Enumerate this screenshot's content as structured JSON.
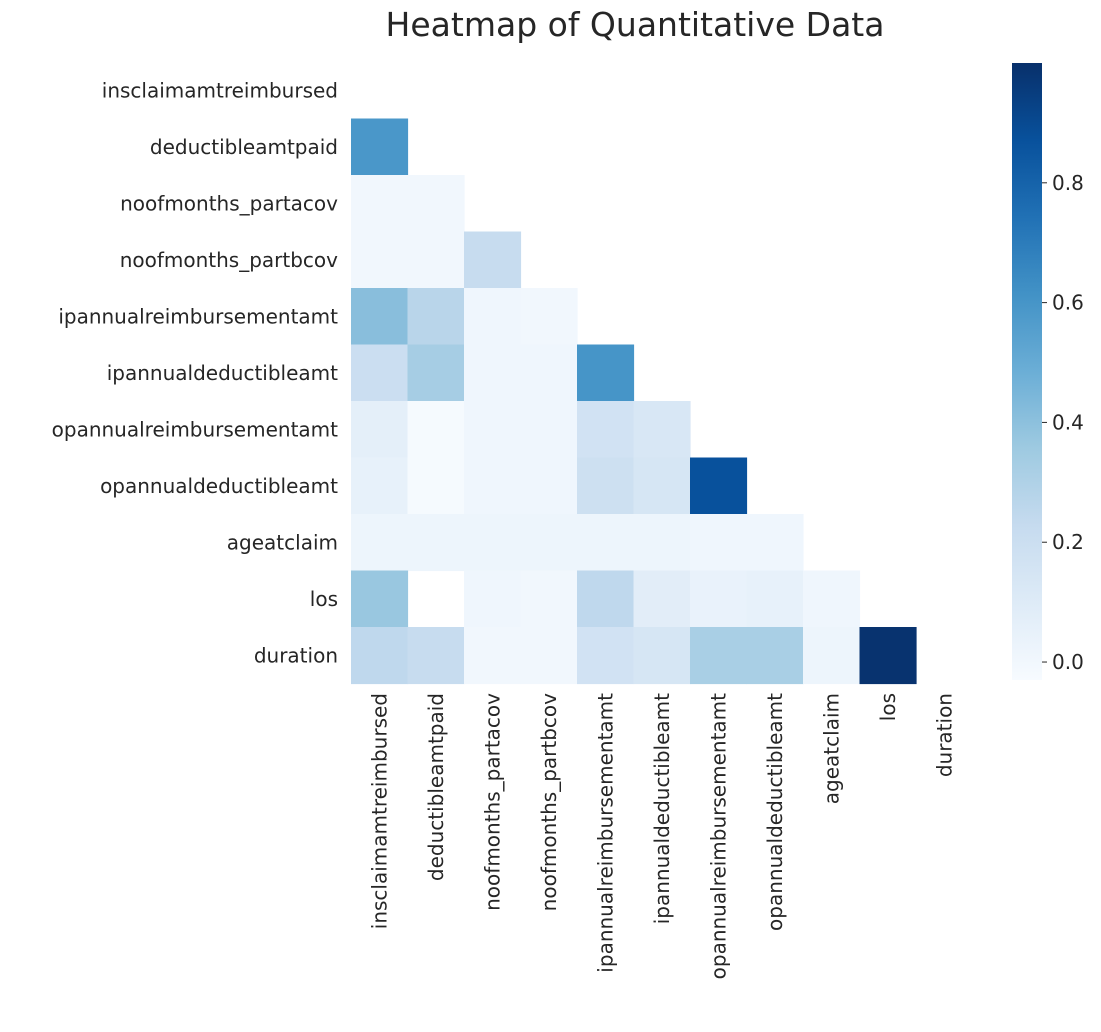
{
  "chart_data": {
    "type": "heatmap",
    "title": "Heatmap of Quantitative Data",
    "variables": [
      "insclaimamtreimbursed",
      "deductibleamtpaid",
      "noofmonths_partacov",
      "noofmonths_partbcov",
      "ipannualreimbursementamt",
      "ipannualdeductibleamt",
      "opannualreimbursementamt",
      "opannualdeductibleamt",
      "ageatclaim",
      "los",
      "duration"
    ],
    "mask": "upper-triangle-including-diagonal",
    "values": [
      [
        null,
        null,
        null,
        null,
        null,
        null,
        null,
        null,
        null,
        null,
        null
      ],
      [
        0.59,
        null,
        null,
        null,
        null,
        null,
        null,
        null,
        null,
        null,
        null
      ],
      [
        0.0,
        0.0,
        null,
        null,
        null,
        null,
        null,
        null,
        null,
        null,
        null
      ],
      [
        0.0,
        0.0,
        0.22,
        null,
        null,
        null,
        null,
        null,
        null,
        null,
        null
      ],
      [
        0.41,
        0.27,
        0.01,
        0.0,
        null,
        null,
        null,
        null,
        null,
        null,
        null
      ],
      [
        0.2,
        0.33,
        0.01,
        0.01,
        0.6,
        null,
        null,
        null,
        null,
        null,
        null
      ],
      [
        0.07,
        -0.02,
        0.01,
        0.01,
        0.17,
        0.13,
        null,
        null,
        null,
        null,
        null
      ],
      [
        0.05,
        -0.02,
        0.01,
        0.01,
        0.19,
        0.14,
        0.87,
        null,
        null,
        null,
        null
      ],
      [
        0.02,
        0.02,
        0.02,
        0.02,
        0.02,
        0.02,
        0.01,
        0.01,
        null,
        null,
        null
      ],
      [
        0.37,
        null,
        0.01,
        0.0,
        0.25,
        0.08,
        0.04,
        0.05,
        0.01,
        null,
        null
      ],
      [
        0.25,
        0.22,
        0.0,
        0.0,
        0.17,
        0.14,
        0.32,
        0.32,
        0.02,
        0.99,
        null
      ]
    ],
    "colorbar": {
      "min": -0.03,
      "max": 1.0,
      "ticks": [
        0.0,
        0.2,
        0.4,
        0.6,
        0.8
      ],
      "tick_labels": [
        "0.0",
        "0.2",
        "0.4",
        "0.6",
        "0.8"
      ]
    },
    "colormap": "Blues",
    "colormap_stops": [
      "#f7fbff",
      "#deebf7",
      "#c6dbef",
      "#9ecae1",
      "#6baed6",
      "#4292c6",
      "#2171b5",
      "#08519c",
      "#08306b"
    ]
  }
}
